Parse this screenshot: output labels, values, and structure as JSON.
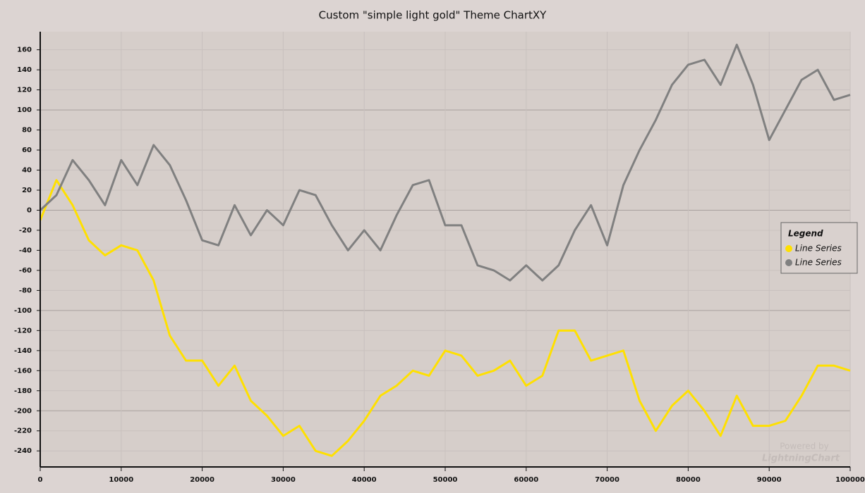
{
  "chart_data": {
    "type": "line",
    "title": "Custom \"simple light gold\" Theme ChartXY",
    "x": [
      0,
      2000,
      4000,
      6000,
      8000,
      10000,
      12000,
      14000,
      16000,
      18000,
      20000,
      22000,
      24000,
      26000,
      28000,
      30000,
      32000,
      34000,
      36000,
      38000,
      40000,
      42000,
      44000,
      46000,
      48000,
      50000,
      52000,
      54000,
      56000,
      58000,
      60000,
      62000,
      64000,
      66000,
      68000,
      70000,
      72000,
      74000,
      76000,
      78000,
      80000,
      82000,
      84000,
      86000,
      88000,
      90000,
      92000,
      94000,
      96000,
      98000,
      100000
    ],
    "series": [
      {
        "name": "Line Series",
        "color": "#ffe000",
        "values": [
          -10,
          30,
          5,
          -30,
          -45,
          -35,
          -40,
          -70,
          -125,
          -150,
          -150,
          -175,
          -155,
          -190,
          -205,
          -225,
          -215,
          -240,
          -245,
          -230,
          -210,
          -185,
          -175,
          -160,
          -165,
          -140,
          -145,
          -165,
          -160,
          -150,
          -175,
          -165,
          -120,
          -120,
          -150,
          -145,
          -140,
          -190,
          -220,
          -195,
          -180,
          -200,
          -225,
          -185,
          -215,
          -215,
          -210,
          -185,
          -155,
          -155,
          -160
        ]
      },
      {
        "name": "Line Series",
        "color": "#808080",
        "values": [
          0,
          15,
          50,
          30,
          5,
          50,
          25,
          65,
          45,
          10,
          -30,
          -35,
          5,
          -25,
          0,
          -15,
          20,
          15,
          -15,
          -40,
          -20,
          -40,
          -5,
          25,
          30,
          -15,
          -15,
          -55,
          -60,
          -70,
          -55,
          -70,
          -55,
          -20,
          5,
          -35,
          25,
          60,
          90,
          125,
          145,
          150,
          125,
          165,
          125,
          70,
          100,
          130,
          140,
          110,
          115
        ]
      }
    ],
    "xlim": [
      0,
      100000
    ],
    "xticks": [
      0,
      10000,
      20000,
      30000,
      40000,
      50000,
      60000,
      70000,
      80000,
      90000,
      100000
    ],
    "ylim": [
      -256,
      178
    ],
    "yticks": [
      -240,
      -220,
      -200,
      -180,
      -160,
      -140,
      -120,
      -100,
      -80,
      -60,
      -40,
      -20,
      0,
      20,
      40,
      60,
      80,
      100,
      120,
      140,
      160
    ],
    "grid": true,
    "legend_title": "Legend",
    "legend_position": "right",
    "watermark": [
      "Powered by",
      "LightningChart"
    ]
  }
}
